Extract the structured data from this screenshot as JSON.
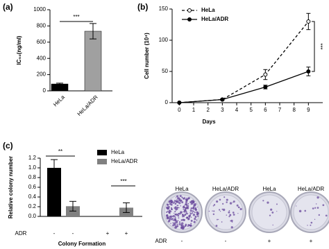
{
  "chart_data": [
    {
      "type": "bar",
      "panel": "(a)",
      "categories": [
        "HeLa",
        "HeLa/ADR"
      ],
      "values": [
        85,
        735
      ],
      "errors": [
        10,
        95
      ],
      "colors": [
        "#000000",
        "#a0a0a0"
      ],
      "ylim": [
        0,
        1000
      ],
      "yticks": [
        0,
        200,
        400,
        600,
        800,
        1000
      ],
      "ylabel": "IC₅₀(ng/ml)",
      "annotations": [
        "***"
      ]
    },
    {
      "type": "line",
      "panel": "(b)",
      "x": [
        0,
        3,
        6,
        9
      ],
      "series": [
        {
          "name": "HeLa",
          "color": "#000000",
          "line_style": "dashed",
          "marker": "open",
          "values": [
            0,
            5,
            45,
            130
          ],
          "errors": [
            0,
            1,
            8,
            13
          ]
        },
        {
          "name": "HeLa/ADR",
          "color": "#000000",
          "line_style": "solid",
          "marker": "filled",
          "values": [
            0,
            5,
            25,
            50
          ],
          "errors": [
            0,
            1,
            3,
            7
          ]
        }
      ],
      "xlim": [
        -0.5,
        10
      ],
      "xticks": [
        0,
        1,
        2,
        3,
        4,
        5,
        6,
        7,
        8,
        9
      ],
      "ylim": [
        0,
        150
      ],
      "yticks": [
        0,
        50,
        100,
        150
      ],
      "xlabel": "Days",
      "ylabel": "Cell number (10⁴)",
      "legend": "top-left",
      "annotations": [
        "***"
      ]
    },
    {
      "type": "grouped_bar",
      "panel": "(c)",
      "series": [
        {
          "name": "HeLa",
          "color": "#000000",
          "values": [
            1.0,
            0
          ],
          "errors": [
            0.17,
            0
          ]
        },
        {
          "name": "HeLa/ADR",
          "color": "#808080",
          "values": [
            0.21,
            0.18
          ],
          "errors": [
            0.1,
            0.1
          ]
        }
      ],
      "x_title": "ADR",
      "x_labels": [
        "-",
        "-",
        "+",
        "+"
      ],
      "ylim": [
        0,
        1.2
      ],
      "yticks": [
        {
          "value": 0,
          "label": "0.0"
        },
        0.2,
        0.4,
        0.6,
        0.8,
        {
          "value": 1,
          "label": "1.0"
        },
        1.2
      ],
      "xlabel": "Colony Formation",
      "ylabel": "Relative colony number",
      "legend": "top-right",
      "annotations": [
        "**",
        "***"
      ]
    }
  ],
  "photos": {
    "labels": [
      "HeLa",
      "HeLa/ADR",
      "HeLa",
      "HeLa/ADR"
    ],
    "condition_title": "ADR",
    "conditions": [
      "-",
      "-",
      "+",
      "+"
    ]
  }
}
